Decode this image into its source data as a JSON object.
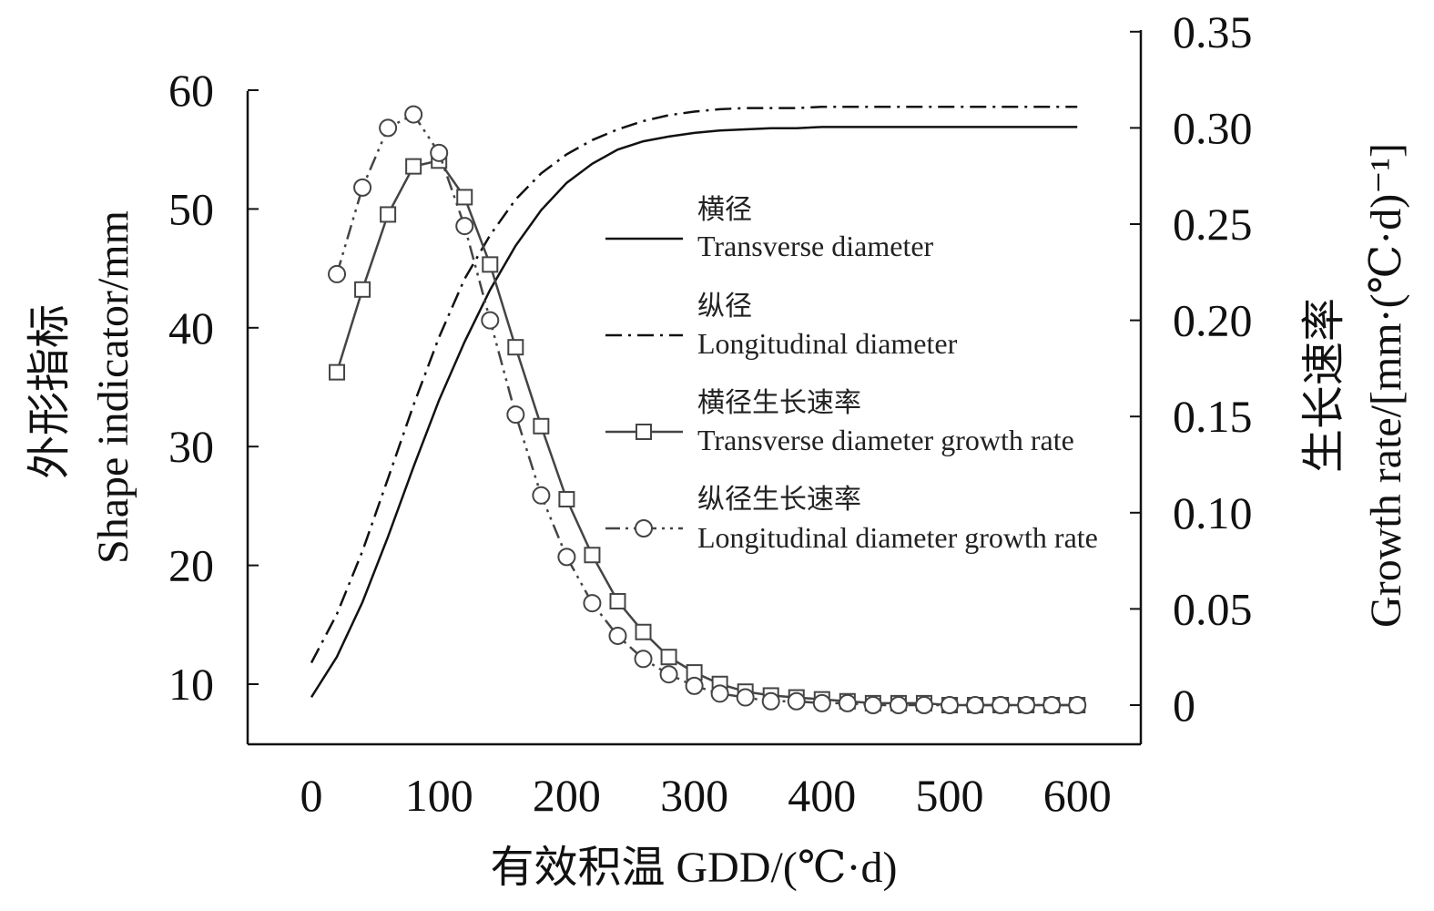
{
  "chart_data": {
    "type": "line",
    "title": "",
    "xlabel": "有效积温 GDD/(℃·d)",
    "ylabel_left_zh": "外形指标",
    "ylabel_left_en": "Shape indicator/mm",
    "ylabel_right_zh": "生长速率",
    "ylabel_right_en": "Growth rate/[mm·(℃·d)⁻¹]",
    "xlim": [
      -50,
      650
    ],
    "xticks": [
      0,
      100,
      200,
      300,
      400,
      500,
      600
    ],
    "ylim_left": [
      5,
      60
    ],
    "yticks_left": [
      10,
      20,
      30,
      40,
      50,
      60
    ],
    "ylim_right": [
      -0.02,
      0.35
    ],
    "yticks_right": [
      "0",
      "0.05",
      "0.10",
      "0.15",
      "0.20",
      "0.25",
      "0.30",
      "0.35"
    ],
    "yticks_right_values": [
      0,
      0.05,
      0.1,
      0.15,
      0.2,
      0.25,
      0.3,
      0.35
    ],
    "series": [
      {
        "name_zh": "横径",
        "name": "Transverse diameter",
        "axis": "left",
        "style": "solid",
        "marker": "none",
        "x": [
          0,
          20,
          40,
          60,
          80,
          100,
          120,
          140,
          160,
          180,
          200,
          220,
          240,
          260,
          280,
          300,
          320,
          340,
          360,
          380,
          400,
          450,
          500,
          550,
          600
        ],
        "y": [
          8.9,
          12.3,
          16.9,
          22.4,
          28.3,
          33.9,
          38.8,
          43.2,
          46.9,
          49.9,
          52.2,
          53.8,
          55.0,
          55.7,
          56.1,
          56.4,
          56.6,
          56.7,
          56.8,
          56.8,
          56.9,
          56.9,
          56.9,
          56.9,
          56.9
        ]
      },
      {
        "name_zh": "纵径",
        "name": "Longitudinal diameter",
        "axis": "left",
        "style": "dashdot",
        "marker": "none",
        "x": [
          0,
          20,
          40,
          60,
          80,
          100,
          120,
          140,
          160,
          180,
          200,
          220,
          240,
          260,
          280,
          300,
          320,
          340,
          360,
          380,
          400,
          450,
          500,
          550,
          600
        ],
        "y": [
          11.8,
          15.9,
          21.2,
          27.3,
          33.5,
          39.2,
          44.1,
          47.8,
          50.8,
          53.0,
          54.6,
          55.8,
          56.7,
          57.4,
          57.9,
          58.2,
          58.4,
          58.5,
          58.5,
          58.5,
          58.6,
          58.6,
          58.6,
          58.6,
          58.6
        ]
      },
      {
        "name_zh": "横径生长速率",
        "name": "Transverse diameter growth rate",
        "axis": "right",
        "style": "solid",
        "marker": "square",
        "x": [
          20,
          40,
          60,
          80,
          100,
          120,
          140,
          160,
          180,
          200,
          220,
          240,
          260,
          280,
          300,
          320,
          340,
          360,
          380,
          400,
          420,
          440,
          460,
          480,
          500,
          520,
          540,
          560,
          580,
          600
        ],
        "y": [
          0.173,
          0.216,
          0.255,
          0.28,
          0.283,
          0.264,
          0.229,
          0.186,
          0.145,
          0.107,
          0.078,
          0.054,
          0.038,
          0.025,
          0.017,
          0.011,
          0.007,
          0.005,
          0.004,
          0.003,
          0.002,
          0.001,
          0.001,
          0.001,
          0.0,
          0.0,
          0.0,
          0.0,
          0.0,
          0.0
        ]
      },
      {
        "name_zh": "纵径生长速率",
        "name": "Longitudinal diameter growth rate",
        "axis": "right",
        "style": "dashdotdot",
        "marker": "circle",
        "x": [
          20,
          40,
          60,
          80,
          100,
          120,
          140,
          160,
          180,
          200,
          220,
          240,
          260,
          280,
          300,
          320,
          340,
          360,
          380,
          400,
          420,
          440,
          460,
          480,
          500,
          520,
          540,
          560,
          580,
          600
        ],
        "y": [
          0.224,
          0.269,
          0.3,
          0.307,
          0.287,
          0.249,
          0.2,
          0.151,
          0.109,
          0.077,
          0.053,
          0.036,
          0.024,
          0.016,
          0.01,
          0.006,
          0.004,
          0.002,
          0.002,
          0.001,
          0.001,
          0.0,
          0.0,
          0.0,
          0.0,
          0.0,
          0.0,
          0.0,
          0.0,
          0.0
        ]
      }
    ],
    "legend_position": "center-right",
    "grid": false
  }
}
